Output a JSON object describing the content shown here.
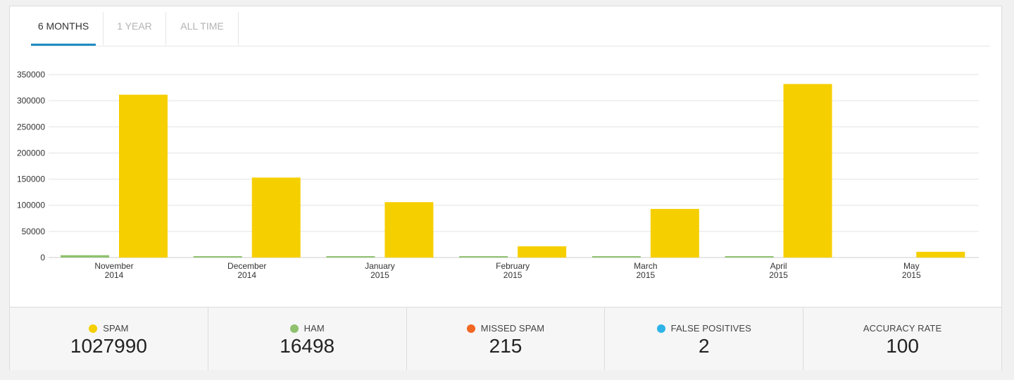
{
  "tabs": [
    {
      "label": "6 MONTHS",
      "active": true
    },
    {
      "label": "1 YEAR",
      "active": false
    },
    {
      "label": "ALL TIME",
      "active": false
    }
  ],
  "colors": {
    "spam": "#f5cf00",
    "ham": "#8fc16e",
    "missed_spam": "#f26722",
    "false_positives": "#2eb3e8",
    "tab_active": "#1e8bc3"
  },
  "chart_data": {
    "type": "bar",
    "categories": [
      [
        "November",
        "2014"
      ],
      [
        "December",
        "2014"
      ],
      [
        "January",
        "2015"
      ],
      [
        "February",
        "2015"
      ],
      [
        "March",
        "2015"
      ],
      [
        "April",
        "2015"
      ],
      [
        "May",
        "2015"
      ]
    ],
    "series": [
      {
        "name": "HAM",
        "color": "#8fc16e",
        "values": [
          4500,
          2500,
          2500,
          2000,
          2500,
          2500,
          0
        ]
      },
      {
        "name": "SPAM",
        "color": "#f5cf00",
        "values": [
          311500,
          153000,
          106000,
          21500,
          93000,
          332000,
          11000
        ]
      }
    ],
    "yticks": [
      0,
      50000,
      100000,
      150000,
      200000,
      250000,
      300000,
      350000
    ],
    "ylim": [
      0,
      350000
    ],
    "grid": true,
    "legend": "none"
  },
  "stats": [
    {
      "label": "SPAM",
      "value": "1027990",
      "dot": "#f5cf00"
    },
    {
      "label": "HAM",
      "value": "16498",
      "dot": "#8fc16e"
    },
    {
      "label": "MISSED SPAM",
      "value": "215",
      "dot": "#f26722"
    },
    {
      "label": "FALSE POSITIVES",
      "value": "2",
      "dot": "#2eb3e8"
    },
    {
      "label": "ACCURACY RATE",
      "value": "100",
      "dot": ""
    }
  ]
}
